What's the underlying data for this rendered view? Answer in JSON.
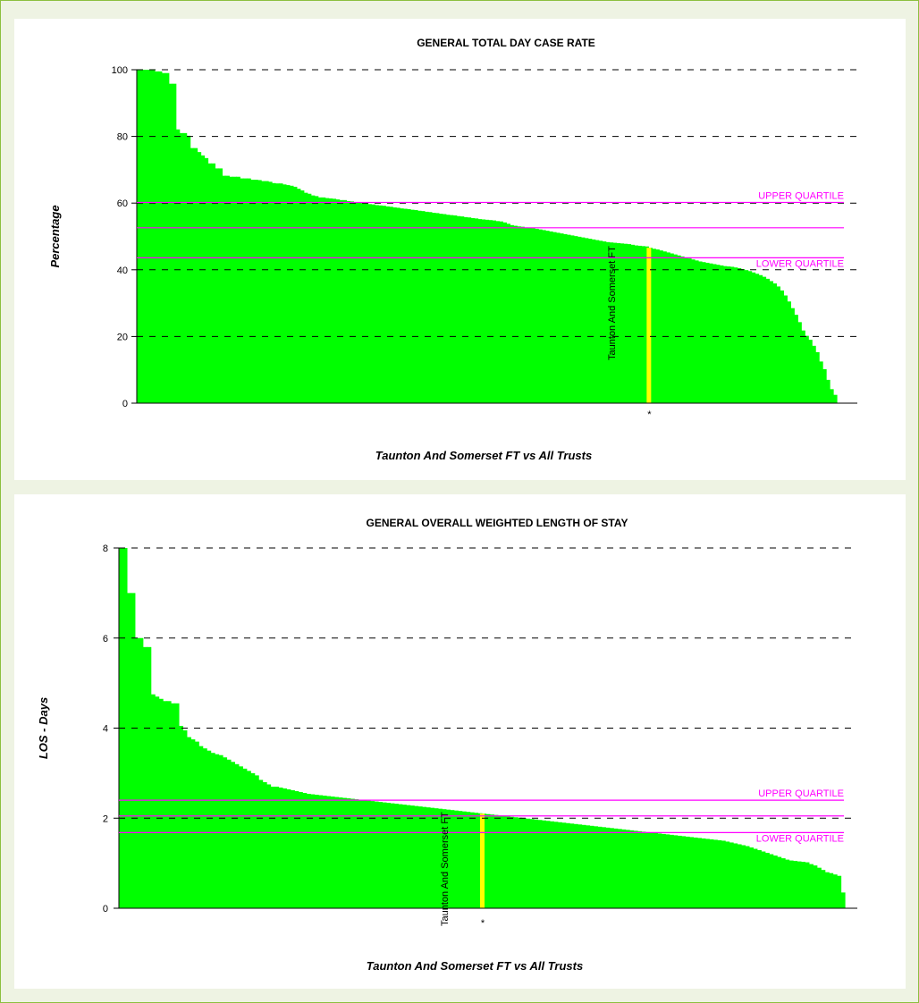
{
  "colors": {
    "bar": "#00ff00",
    "highlight": "#ffff00",
    "quartile": "#ff00ff",
    "median": "#ff00ff",
    "grid": "#000000",
    "frame_border": "#8cbf3f",
    "frame_bg": "#eef3e3"
  },
  "chart_data": [
    {
      "type": "bar",
      "title": "GENERAL TOTAL DAY CASE RATE",
      "ylabel": "Percentage",
      "xlabel": "Taunton And Somerset FT vs All Trusts",
      "ylim": [
        0,
        100
      ],
      "yticks": [
        0,
        20,
        40,
        60,
        80,
        100
      ],
      "grid": "dashed horizontal",
      "highlight": {
        "label": "Taunton And Somerset FT",
        "value": 46.6,
        "index": 144,
        "marker": "*"
      },
      "reference_lines": {
        "upper_quartile": {
          "label": "UPPER QUARTILE",
          "value": 60.2
        },
        "median": {
          "value": 52.6
        },
        "lower_quartile": {
          "label": "LOWER QUARTILE",
          "value": 43.6
        }
      },
      "values": [
        100,
        100,
        100,
        100,
        100,
        99.5,
        99.5,
        99,
        99,
        95.8,
        95.8,
        82.1,
        81,
        81,
        80.2,
        76.5,
        76.5,
        75.3,
        74.3,
        73.5,
        71.9,
        71.9,
        70.4,
        70.4,
        68.2,
        68.2,
        67.9,
        67.9,
        67.9,
        67.4,
        67.4,
        67.4,
        67.0,
        67.0,
        66.9,
        66.6,
        66.6,
        66.4,
        66.0,
        65.9,
        65.9,
        65.6,
        65.4,
        65.2,
        64.9,
        64.3,
        63.8,
        63.1,
        62.8,
        62.3,
        62.1,
        61.7,
        61.7,
        61.5,
        61.4,
        61.3,
        61.1,
        60.9,
        60.9,
        60.6,
        60.5,
        60.3,
        60.2,
        60.0,
        59.9,
        59.7,
        59.6,
        59.4,
        59.3,
        59.2,
        59.0,
        58.9,
        58.7,
        58.6,
        58.4,
        58.3,
        58.2,
        58.0,
        57.9,
        57.7,
        57.6,
        57.4,
        57.3,
        57.1,
        57.0,
        56.8,
        56.7,
        56.5,
        56.4,
        56.3,
        56.1,
        56.0,
        55.8,
        55.7,
        55.5,
        55.4,
        55.2,
        55.1,
        55.0,
        54.9,
        54.8,
        54.6,
        54.5,
        54.2,
        53.8,
        53.4,
        53.2,
        53.0,
        52.9,
        52.7,
        52.6,
        52.5,
        52.3,
        52.1,
        51.9,
        51.7,
        51.5,
        51.3,
        51.1,
        50.9,
        50.7,
        50.5,
        50.3,
        50.1,
        49.9,
        49.7,
        49.5,
        49.3,
        49.1,
        48.9,
        48.7,
        48.5,
        48.3,
        48.2,
        48.1,
        48.0,
        47.9,
        47.8,
        47.7,
        47.5,
        47.3,
        47.2,
        47.1,
        47.0,
        46.6,
        46.3,
        46.1,
        45.8,
        45.5,
        45.2,
        44.9,
        44.6,
        44.3,
        44.0,
        43.7,
        43.4,
        43.1,
        42.8,
        42.5,
        42.3,
        42.1,
        41.9,
        41.7,
        41.5,
        41.3,
        41.1,
        41.0,
        40.9,
        40.7,
        40.5,
        40.2,
        39.9,
        39.6,
        39.2,
        38.8,
        38.4,
        37.9,
        37.3,
        36.6,
        35.9,
        35.0,
        33.8,
        32.3,
        30.5,
        28.5,
        26.5,
        24.3,
        21.8,
        20.2,
        19.0,
        17.2,
        15.3,
        12.5,
        10.2,
        7.0,
        4.2,
        2.5
      ]
    },
    {
      "type": "bar",
      "title": "GENERAL OVERALL WEIGHTED LENGTH OF STAY",
      "ylabel": "LOS - Days",
      "xlabel": "Taunton And Somerset FT vs All Trusts",
      "ylim": [
        0,
        8
      ],
      "yticks": [
        0,
        2,
        4,
        6,
        8
      ],
      "grid": "dashed horizontal",
      "highlight": {
        "label": "Taunton And Somerset FT",
        "value": 2.1,
        "index": 91,
        "marker": "*"
      },
      "reference_lines": {
        "upper_quartile": {
          "label": "UPPER QUARTILE",
          "value": 2.4
        },
        "median": {
          "value": 2.05
        },
        "lower_quartile": {
          "label": "LOWER QUARTILE",
          "value": 1.68
        }
      },
      "values": [
        8.0,
        8.0,
        7.0,
        7.0,
        6.0,
        6.0,
        5.8,
        5.8,
        4.75,
        4.7,
        4.65,
        4.6,
        4.6,
        4.55,
        4.55,
        4.05,
        3.95,
        3.8,
        3.75,
        3.7,
        3.6,
        3.55,
        3.5,
        3.45,
        3.42,
        3.4,
        3.35,
        3.3,
        3.25,
        3.2,
        3.15,
        3.1,
        3.05,
        3.0,
        2.95,
        2.85,
        2.8,
        2.75,
        2.7,
        2.7,
        2.68,
        2.66,
        2.64,
        2.62,
        2.6,
        2.58,
        2.56,
        2.54,
        2.53,
        2.52,
        2.51,
        2.5,
        2.49,
        2.48,
        2.47,
        2.46,
        2.45,
        2.44,
        2.43,
        2.42,
        2.41,
        2.4,
        2.39,
        2.38,
        2.37,
        2.36,
        2.35,
        2.34,
        2.33,
        2.32,
        2.31,
        2.3,
        2.29,
        2.28,
        2.27,
        2.26,
        2.25,
        2.24,
        2.23,
        2.22,
        2.21,
        2.2,
        2.19,
        2.18,
        2.17,
        2.16,
        2.15,
        2.14,
        2.13,
        2.12,
        2.11,
        2.1,
        2.09,
        2.08,
        2.07,
        2.06,
        2.05,
        2.04,
        2.03,
        2.02,
        2.01,
        2.0,
        1.99,
        1.98,
        1.97,
        1.96,
        1.95,
        1.94,
        1.93,
        1.92,
        1.91,
        1.9,
        1.89,
        1.88,
        1.87,
        1.86,
        1.85,
        1.84,
        1.83,
        1.82,
        1.81,
        1.8,
        1.79,
        1.78,
        1.77,
        1.76,
        1.75,
        1.74,
        1.73,
        1.72,
        1.71,
        1.7,
        1.69,
        1.68,
        1.67,
        1.66,
        1.65,
        1.64,
        1.63,
        1.62,
        1.61,
        1.6,
        1.59,
        1.58,
        1.57,
        1.56,
        1.55,
        1.54,
        1.53,
        1.52,
        1.51,
        1.5,
        1.48,
        1.46,
        1.44,
        1.42,
        1.4,
        1.38,
        1.35,
        1.32,
        1.29,
        1.26,
        1.23,
        1.2,
        1.17,
        1.14,
        1.11,
        1.08,
        1.06,
        1.05,
        1.04,
        1.03,
        1.02,
        0.98,
        0.95,
        0.9,
        0.85,
        0.8,
        0.78,
        0.75,
        0.72,
        0.35
      ]
    }
  ]
}
